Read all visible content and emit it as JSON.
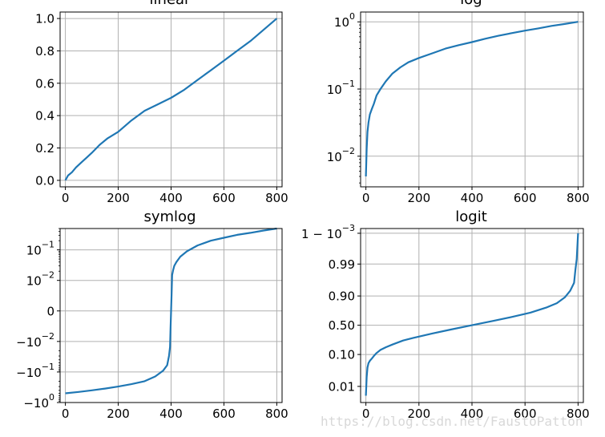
{
  "chart_data": [
    {
      "type": "line",
      "title": "linear",
      "yscale": "linear",
      "xlim": [
        -20,
        820
      ],
      "ylim": [
        -0.04,
        1.04
      ],
      "x_ticks": [
        0,
        200,
        400,
        600,
        800
      ],
      "x_tick_labels": [
        "0",
        "200",
        "400",
        "600",
        "800"
      ],
      "y_ticks": [
        0.0,
        0.2,
        0.4,
        0.6,
        0.8,
        1.0
      ],
      "y_tick_labels": [
        "0.0",
        "0.2",
        "0.4",
        "0.6",
        "0.8",
        "1.0"
      ],
      "grid": true,
      "color": "#1f77b4",
      "series": [
        {
          "x": [
            0,
            10,
            25,
            40,
            60,
            80,
            100,
            130,
            160,
            200,
            250,
            300,
            350,
            400,
            450,
            500,
            550,
            600,
            650,
            700,
            750,
            800
          ],
          "y": [
            0.0,
            0.03,
            0.05,
            0.08,
            0.11,
            0.14,
            0.17,
            0.22,
            0.26,
            0.3,
            0.37,
            0.43,
            0.47,
            0.51,
            0.56,
            0.62,
            0.68,
            0.74,
            0.8,
            0.86,
            0.93,
            1.0
          ]
        }
      ]
    },
    {
      "type": "line",
      "title": "log",
      "yscale": "log",
      "xlim": [
        -20,
        820
      ],
      "ylim": [
        0.0035,
        1.4
      ],
      "x_ticks": [
        0,
        200,
        400,
        600,
        800
      ],
      "x_tick_labels": [
        "0",
        "200",
        "400",
        "600",
        "800"
      ],
      "y_ticks": [
        0.01,
        0.1,
        1
      ],
      "y_tick_labels": [
        "10^-2",
        "10^-1",
        "10^0"
      ],
      "grid": true,
      "color": "#1f77b4",
      "series": [
        {
          "x": [
            0,
            3,
            6,
            10,
            15,
            22,
            30,
            40,
            55,
            75,
            100,
            130,
            160,
            200,
            250,
            300,
            350,
            400,
            450,
            500,
            550,
            600,
            650,
            700,
            750,
            800
          ],
          "y": [
            0.005,
            0.013,
            0.023,
            0.032,
            0.042,
            0.05,
            0.06,
            0.08,
            0.1,
            0.13,
            0.17,
            0.21,
            0.25,
            0.29,
            0.34,
            0.4,
            0.45,
            0.5,
            0.56,
            0.62,
            0.68,
            0.74,
            0.8,
            0.87,
            0.93,
            1.0
          ]
        }
      ]
    },
    {
      "type": "line",
      "title": "symlog",
      "yscale": "symlog",
      "linthresh": 0.01,
      "xlim": [
        -20,
        820
      ],
      "ylim": [
        -1.0,
        0.5
      ],
      "x_ticks": [
        0,
        200,
        400,
        600,
        800
      ],
      "x_tick_labels": [
        "0",
        "200",
        "400",
        "600",
        "800"
      ],
      "y_ticks": [
        -1,
        -0.1,
        -0.01,
        0,
        0.01,
        0.1
      ],
      "y_tick_labels": [
        "-10^0",
        "-10^-1",
        "-10^-2",
        "0",
        "10^-2",
        "10^-1"
      ],
      "grid": true,
      "color": "#1f77b4",
      "series": [
        {
          "x": [
            0,
            50,
            100,
            150,
            200,
            250,
            300,
            340,
            370,
            385,
            392,
            396,
            398,
            400,
            402,
            404,
            408,
            412,
            420,
            435,
            460,
            500,
            550,
            600,
            650,
            700,
            750,
            800
          ],
          "y": [
            -0.5,
            -0.45,
            -0.4,
            -0.35,
            -0.3,
            -0.25,
            -0.2,
            -0.14,
            -0.09,
            -0.06,
            -0.03,
            -0.015,
            -0.006,
            0.0,
            0.006,
            0.015,
            0.022,
            0.03,
            0.04,
            0.06,
            0.09,
            0.14,
            0.2,
            0.25,
            0.31,
            0.36,
            0.43,
            0.5
          ]
        }
      ]
    },
    {
      "type": "line",
      "title": "logit",
      "yscale": "logit",
      "xlim": [
        -20,
        820
      ],
      "ylim": [
        0.003,
        0.9993
      ],
      "x_ticks": [
        0,
        200,
        400,
        600,
        800
      ],
      "x_tick_labels": [
        "0",
        "200",
        "400",
        "600",
        "800"
      ],
      "y_ticks": [
        0.01,
        0.1,
        0.5,
        0.9,
        0.99,
        0.999
      ],
      "y_tick_labels": [
        "0.01",
        "0.10",
        "0.50",
        "0.90",
        "0.99",
        "1 − 10^-3"
      ],
      "grid": true,
      "color": "#1f77b4",
      "series": [
        {
          "x": [
            0,
            3,
            6,
            10,
            15,
            22,
            30,
            40,
            55,
            75,
            100,
            140,
            180,
            250,
            320,
            400,
            480,
            550,
            620,
            680,
            720,
            750,
            770,
            785,
            790,
            795,
            800
          ],
          "y": [
            0.005,
            0.02,
            0.04,
            0.055,
            0.065,
            0.075,
            0.09,
            0.11,
            0.135,
            0.16,
            0.19,
            0.24,
            0.28,
            0.35,
            0.42,
            0.5,
            0.58,
            0.65,
            0.72,
            0.79,
            0.84,
            0.89,
            0.93,
            0.96,
            0.985,
            0.993,
            0.999
          ]
        }
      ]
    }
  ],
  "watermark": "https://blog.csdn.net/FaustoPatton"
}
